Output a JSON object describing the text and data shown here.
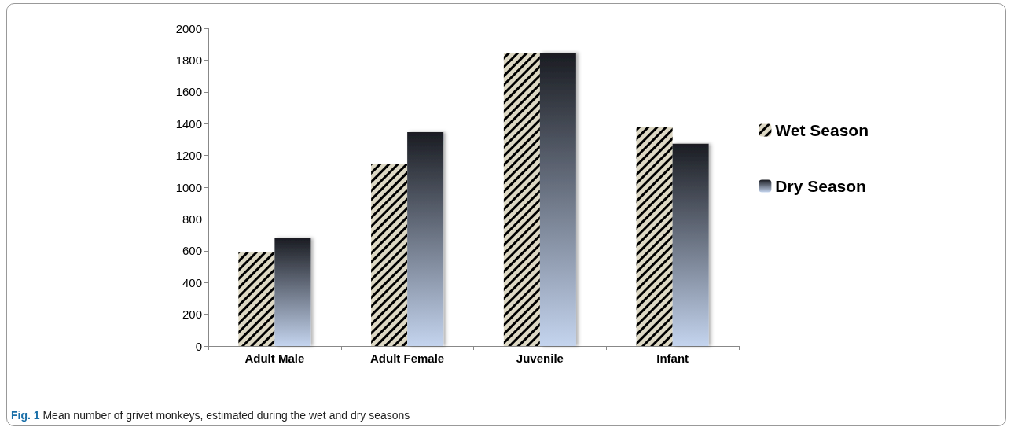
{
  "chart_data": {
    "type": "bar",
    "categories": [
      "Adult Male",
      "Adult Female",
      "Juvenile",
      "Infant"
    ],
    "series": [
      {
        "name": "Wet Season",
        "color": "#ddd8c4",
        "values": [
          592,
          1149,
          1843,
          1378
        ]
      },
      {
        "name": "Dry Season",
        "color": "#1a1c22",
        "values": [
          680,
          1347,
          1846,
          1274
        ]
      }
    ],
    "ylim": [
      0,
      2000
    ],
    "yticks": [
      0,
      200,
      400,
      600,
      800,
      1000,
      1200,
      1400,
      1600,
      1800,
      2000
    ],
    "grid": false,
    "legend": "right",
    "annotations": [
      "Fig. 1 Mean number of grivet monkeys, estimated during the wet and dry seasons"
    ]
  }
}
